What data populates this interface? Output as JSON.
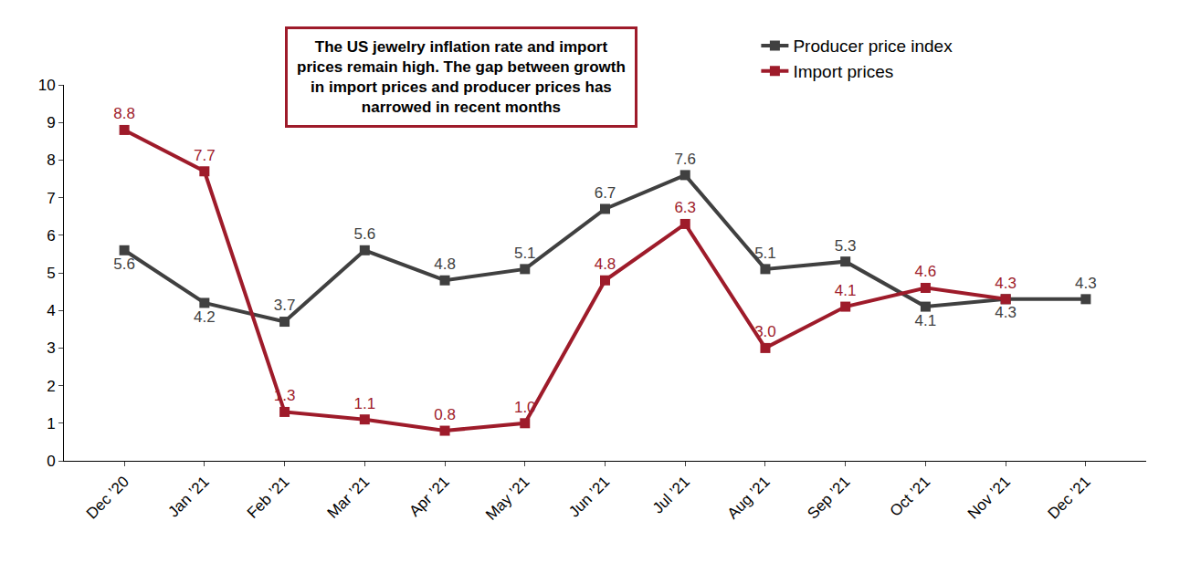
{
  "chart_data": {
    "type": "line",
    "annotation": [
      "The US jewelry inflation rate and import",
      "prices remain high. The gap between growth",
      "in import prices and producer prices has",
      "narrowed in recent months"
    ],
    "categories": [
      "Dec ’20",
      "Jan ’21",
      "Feb ’21",
      "Mar ’21",
      "Apr ’21",
      "May ’21",
      "Jun ’21",
      "Jul ’21",
      "Aug ’21",
      "Sep ’21",
      "Oct ’21",
      "Nov ’21",
      "Dec ’21"
    ],
    "series": [
      {
        "name": "Producer price index",
        "color": "#404040",
        "marker": "square",
        "values": [
          5.6,
          4.2,
          3.7,
          5.6,
          4.8,
          5.1,
          6.7,
          7.6,
          5.1,
          5.3,
          4.1,
          4.3,
          4.3
        ]
      },
      {
        "name": "Import prices",
        "color": "#9e1b2a",
        "marker": "square",
        "values": [
          8.8,
          7.7,
          1.3,
          1.1,
          0.8,
          1.0,
          4.8,
          6.3,
          3.0,
          4.1,
          4.6,
          4.3,
          null
        ],
        "value_labels": [
          "8.8",
          "7.7",
          "1.3",
          "1.1",
          "0.8",
          "1.0",
          "4.8",
          "6.3",
          "3.0",
          "4.1",
          "4.6",
          "4.3",
          null
        ]
      }
    ],
    "ylim": [
      0,
      10
    ],
    "yticks": [
      0,
      1,
      2,
      3,
      4,
      5,
      6,
      7,
      8,
      9,
      10
    ],
    "grid": false,
    "legend": "top right",
    "data_labels": true
  }
}
